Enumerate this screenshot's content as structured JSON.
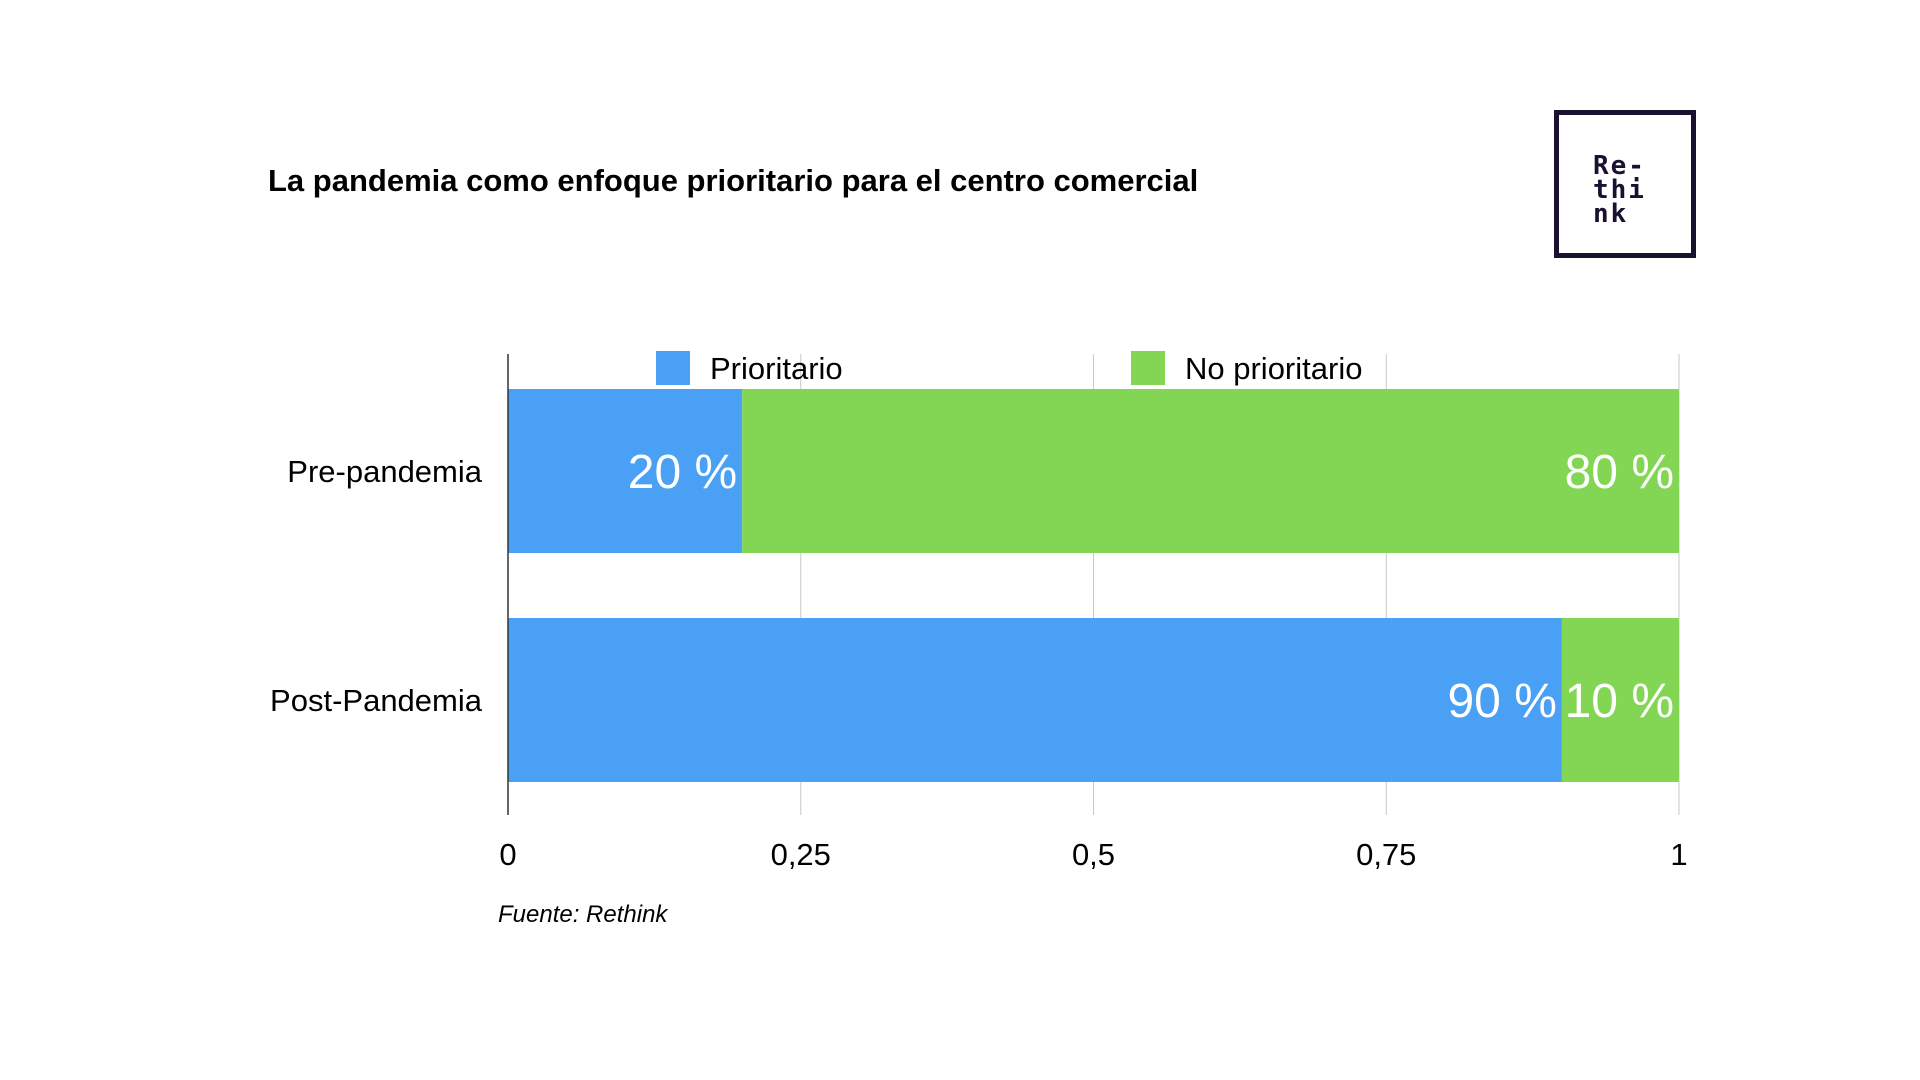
{
  "title": "La pandemia como enfoque prioritario para el centro comercial",
  "logo": {
    "line1": "Re-",
    "line2": "thi",
    "line3": "nk"
  },
  "source": "Fuente: Rethink",
  "chart_data": {
    "type": "bar",
    "orientation": "horizontal",
    "stacked": true,
    "categories": [
      "Pre-pandemia",
      "Post-Pandemia"
    ],
    "series": [
      {
        "name": "Prioritario",
        "values": [
          0.2,
          0.9
        ],
        "labels": [
          "20 %",
          "90 %"
        ],
        "color": "#4aa0f5"
      },
      {
        "name": "No prioritario",
        "values": [
          0.8,
          0.1
        ],
        "labels": [
          "80 %",
          "10 %"
        ],
        "color": "#82d654"
      }
    ],
    "xlim": [
      0,
      1
    ],
    "xticks": [
      0,
      0.25,
      0.5,
      0.75,
      1
    ],
    "xtick_labels": [
      "0",
      "0,25",
      "0,5",
      "0,75",
      "1"
    ],
    "grid": true,
    "legend": "top"
  }
}
